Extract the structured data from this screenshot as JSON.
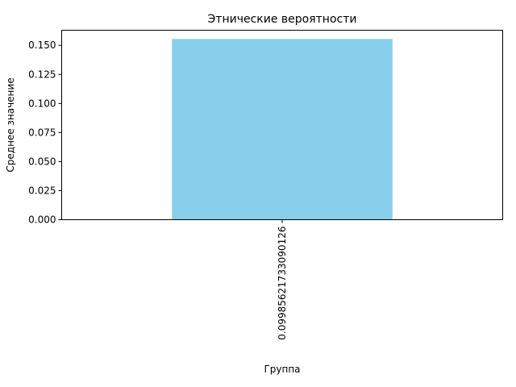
{
  "chart_data": {
    "type": "bar",
    "title": "Этнические вероятности",
    "xlabel": "Группа",
    "ylabel": "Среднее значение",
    "categories": [
      "0.09985621733090126"
    ],
    "values": [
      0.1555
    ],
    "ylim": [
      0,
      0.163
    ],
    "yticks": [
      "0.000",
      "0.025",
      "0.050",
      "0.075",
      "0.100",
      "0.125",
      "0.150"
    ],
    "bar_color": "#87ceeb",
    "grid": false,
    "legend": "none"
  }
}
